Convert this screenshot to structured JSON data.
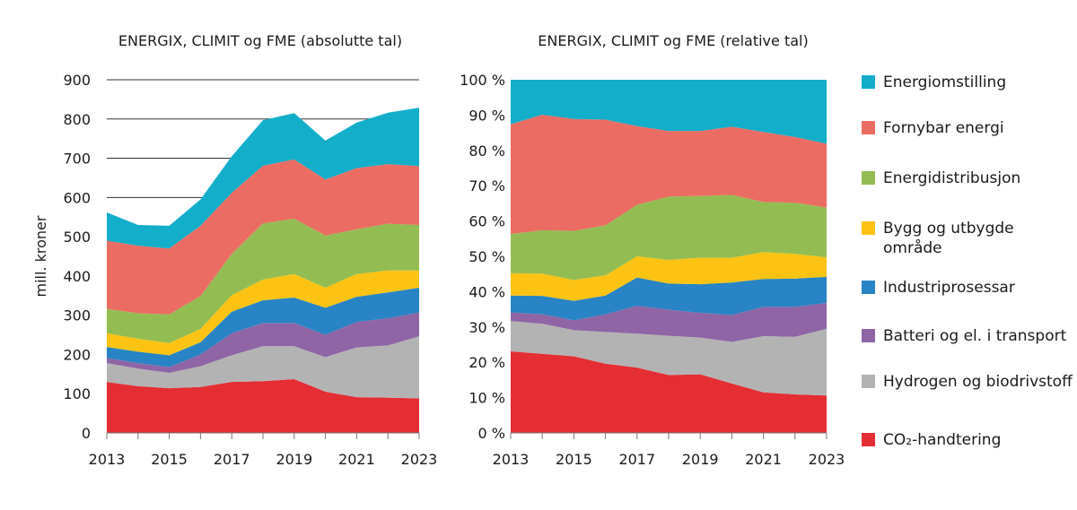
{
  "chart_data": [
    {
      "type": "area",
      "stacked": true,
      "title": "ENERGIX, CLIMIT og FME (absolutte tal)",
      "xlabel": "",
      "ylabel": "mill. kroner",
      "ylim": [
        0,
        900
      ],
      "yticks": [
        0,
        100,
        200,
        300,
        400,
        500,
        600,
        700,
        800,
        900
      ],
      "xticks": [
        "2013",
        "2015",
        "2017",
        "2019",
        "2021",
        "2023"
      ],
      "x": [
        2013,
        2014,
        2015,
        2016,
        2017,
        2018,
        2019,
        2020,
        2021,
        2022,
        2023
      ],
      "grid": "horizontal lines at 600-900",
      "series": [
        {
          "name": "CO2-handtering",
          "color": "#e52d34",
          "values": [
            130,
            119,
            114,
            117,
            130,
            132,
            137,
            105,
            91,
            90,
            88
          ]
        },
        {
          "name": "Hydrogen og biodrivstoff",
          "color": "#b3b3b3",
          "values": [
            48,
            45,
            39,
            53,
            68,
            89,
            84,
            88,
            127,
            133,
            158
          ]
        },
        {
          "name": "Batteri og el. i transport",
          "color": "#8f65a6",
          "values": [
            13,
            14,
            15,
            30,
            56,
            59,
            59,
            57,
            65,
            69,
            61
          ]
        },
        {
          "name": "Industriprosessar",
          "color": "#2884c4",
          "values": [
            28,
            29,
            30,
            31,
            55,
            58,
            65,
            69,
            64,
            66,
            63
          ]
        },
        {
          "name": "Bygg og utbygde område",
          "color": "#fcc314",
          "values": [
            35,
            33,
            31,
            34,
            42,
            53,
            60,
            51,
            58,
            56,
            44
          ]
        },
        {
          "name": "Energidistribusjon",
          "color": "#93bd52",
          "values": [
            62,
            65,
            73,
            84,
            105,
            143,
            141,
            133,
            114,
            119,
            116
          ]
        },
        {
          "name": "Fornybar energi",
          "color": "#eb6c63",
          "values": [
            174,
            172,
            168,
            179,
            156,
            147,
            151,
            143,
            156,
            152,
            150
          ]
        },
        {
          "name": "Energiomstilling",
          "color": "#12aeca",
          "values": [
            72,
            53,
            58,
            67,
            93,
            116,
            118,
            99,
            116,
            131,
            149
          ]
        }
      ]
    },
    {
      "type": "area",
      "stacked": true,
      "title": "ENERGIX, CLIMIT og FME (relative tal)",
      "xlabel": "",
      "ylabel": "",
      "ylim": [
        0,
        100
      ],
      "yticks": [
        "0 %",
        "10 %",
        "20 %",
        "30 %",
        "40 %",
        "50 %",
        "60 %",
        "70 %",
        "80 %",
        "90 %",
        "100 %"
      ],
      "xticks": [
        "2013",
        "2015",
        "2017",
        "2019",
        "2021",
        "2023"
      ],
      "x": [
        2013,
        2014,
        2015,
        2016,
        2017,
        2018,
        2019,
        2020,
        2021,
        2022,
        2023
      ],
      "grid": "none",
      "series": [
        {
          "name": "CO2-handtering",
          "color": "#e52d34",
          "values": [
            23.1,
            22.4,
            21.7,
            19.6,
            18.5,
            16.4,
            16.6,
            14.0,
            11.5,
            10.9,
            10.6
          ]
        },
        {
          "name": "Hydrogen og biodrivstoff",
          "color": "#b3b3b3",
          "values": [
            8.6,
            8.5,
            7.4,
            9.0,
            9.6,
            11.1,
            10.4,
            11.8,
            15.9,
            16.3,
            18.9
          ]
        },
        {
          "name": "Batteri og el. i transport",
          "color": "#8f65a6",
          "values": [
            2.4,
            2.7,
            2.8,
            5.0,
            7.9,
            7.4,
            7.0,
            7.6,
            8.3,
            8.5,
            7.3
          ]
        },
        {
          "name": "Industriprosessar",
          "color": "#2884c4",
          "values": [
            4.8,
            5.2,
            5.5,
            5.3,
            8.0,
            7.4,
            8.1,
            9.2,
            7.9,
            8.0,
            7.4
          ]
        },
        {
          "name": "Bygg og utbygde område",
          "color": "#fcc314",
          "values": [
            6.3,
            6.3,
            5.9,
            5.7,
            6.0,
            6.7,
            7.5,
            7.0,
            7.6,
            7.0,
            5.5
          ]
        },
        {
          "name": "Energidistribusjon",
          "color": "#93bd52",
          "values": [
            11.1,
            12.3,
            13.9,
            14.2,
            14.6,
            17.9,
            17.5,
            17.8,
            14.2,
            14.5,
            14.1
          ]
        },
        {
          "name": "Fornybar energi",
          "color": "#eb6c63",
          "values": [
            31.1,
            32.7,
            31.7,
            29.9,
            22.3,
            18.6,
            18.4,
            19.3,
            19.8,
            18.6,
            18.1
          ]
        },
        {
          "name": "Energiomstilling",
          "color": "#12aeca",
          "values": [
            12.6,
            9.9,
            11.1,
            11.3,
            13.1,
            14.5,
            14.5,
            13.3,
            14.8,
            16.2,
            18.1
          ]
        }
      ]
    }
  ],
  "legend": {
    "placement": "right",
    "items": [
      {
        "label": "Energiomstilling",
        "color": "#12aeca"
      },
      {
        "label": "Fornybar energi",
        "color": "#eb6c63"
      },
      {
        "label": "Energidistribusjon",
        "color": "#93bd52"
      },
      {
        "label": "Bygg og utbygde område",
        "color": "#fcc314"
      },
      {
        "label": "Industriprosessar",
        "color": "#2884c4"
      },
      {
        "label": "Batteri og el. i transport",
        "color": "#8f65a6"
      },
      {
        "label": "Hydrogen og biodrivstoff",
        "color": "#b3b3b3"
      },
      {
        "label": "CO₂-handtering",
        "color": "#e52d34"
      }
    ]
  }
}
